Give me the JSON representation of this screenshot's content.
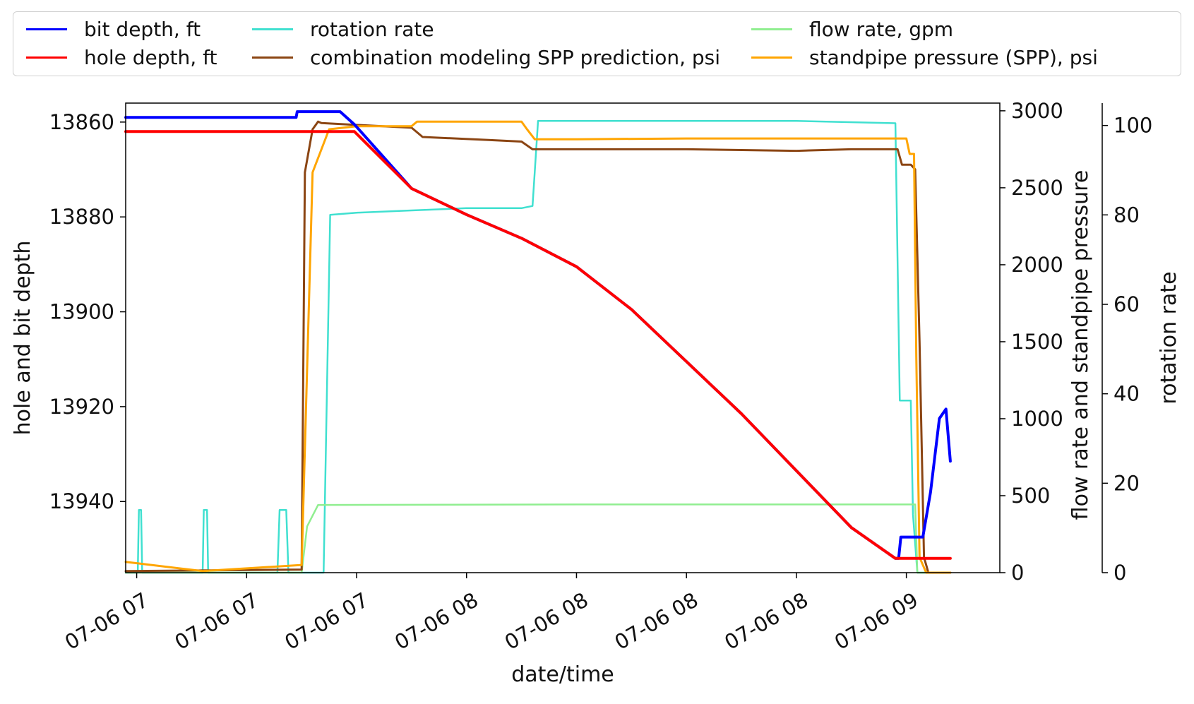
{
  "chart_data": {
    "type": "line",
    "legend": {
      "placement": "top",
      "entries": [
        {
          "label": "bit depth, ft",
          "color": "#0000ff"
        },
        {
          "label": "hole depth, ft",
          "color": "#ff0000"
        },
        {
          "label": "rotation rate",
          "color": "#40e0d0"
        },
        {
          "label": "combination modeling SPP prediction, psi",
          "color": "#8b4513"
        },
        {
          "label": "flow rate, gpm",
          "color": "#90ee90"
        },
        {
          "label": "standpipe pressure (SPP), psi",
          "color": "#ffa500"
        }
      ]
    },
    "xlabel": "date/time",
    "xlim": [
      -0.1,
      7.85
    ],
    "x_ticks": [
      {
        "value": 0,
        "label": "07-06 07"
      },
      {
        "value": 1,
        "label": "07-06 07"
      },
      {
        "value": 2,
        "label": "07-06 07"
      },
      {
        "value": 3,
        "label": "07-06 08"
      },
      {
        "value": 4,
        "label": "07-06 08"
      },
      {
        "value": 5,
        "label": "07-06 08"
      },
      {
        "value": 6,
        "label": "07-06 08"
      },
      {
        "value": 7,
        "label": "07-06 09"
      }
    ],
    "y_left": {
      "label": "hole and bit depth",
      "ylim": [
        13856,
        13955
      ],
      "inverted": true,
      "ticks": [
        13860,
        13880,
        13900,
        13920,
        13940
      ]
    },
    "y_right1": {
      "label": "flow rate and standpipe pressure",
      "ylim": [
        0,
        3050
      ],
      "ticks": [
        0,
        500,
        1000,
        1500,
        2000,
        2500,
        3000
      ]
    },
    "y_right2": {
      "label": "rotation rate",
      "ylim": [
        0,
        105
      ],
      "ticks": [
        0,
        20,
        40,
        60,
        80,
        100
      ]
    },
    "series": [
      {
        "name": "bit depth, ft",
        "axis": "left",
        "color": "#0000ff",
        "width": 4,
        "x": [
          -0.1,
          1.45,
          1.46,
          1.85,
          1.98,
          2.5,
          3.0,
          3.5,
          4.0,
          4.5,
          5.0,
          5.5,
          6.0,
          6.5,
          6.9,
          6.93,
          6.95,
          7.15,
          7.22,
          7.3,
          7.36,
          7.4
        ],
        "y": [
          13859,
          13859,
          13857.8,
          13857.8,
          13860.5,
          13874,
          13879.5,
          13884.5,
          13890.5,
          13899.5,
          13910.5,
          13921.5,
          13933.5,
          13945.5,
          13952,
          13952,
          13947.5,
          13947.5,
          13938,
          13922.5,
          13920.5,
          13931.5
        ]
      },
      {
        "name": "hole depth, ft",
        "axis": "left",
        "color": "#ff0000",
        "width": 4,
        "x": [
          -0.1,
          1.98,
          2.5,
          3.0,
          3.5,
          4.0,
          4.5,
          5.0,
          5.5,
          6.0,
          6.5,
          6.9,
          7.4
        ],
        "y": [
          13862,
          13862,
          13874,
          13879.5,
          13884.5,
          13890.5,
          13899.5,
          13910.5,
          13921.5,
          13933.5,
          13945.5,
          13952,
          13952
        ]
      },
      {
        "name": "rotation rate",
        "axis": "right2",
        "color": "#40e0d0",
        "width": 2.5,
        "x": [
          -0.1,
          0.01,
          0.02,
          0.04,
          0.05,
          0.6,
          0.61,
          0.64,
          0.65,
          1.28,
          1.3,
          1.36,
          1.38,
          1.7,
          1.76,
          2.0,
          2.5,
          3.0,
          3.5,
          3.6,
          3.65,
          4.0,
          5.0,
          6.0,
          6.9,
          6.94,
          7.04,
          7.06,
          7.1,
          7.2,
          7.4
        ],
        "y": [
          0,
          0,
          14,
          14,
          0,
          0,
          14,
          14,
          0,
          0,
          14,
          14,
          0,
          0,
          80,
          80.5,
          81,
          81.5,
          81.5,
          82,
          101,
          101,
          101,
          101,
          100.5,
          38.5,
          38.5,
          13,
          0,
          0,
          0
        ]
      },
      {
        "name": "combination modeling SPP prediction, psi",
        "axis": "right1",
        "color": "#8b4513",
        "width": 3,
        "x": [
          -0.1,
          1.5,
          1.53,
          1.6,
          1.65,
          1.68,
          2.5,
          2.55,
          2.6,
          3.2,
          3.5,
          3.6,
          3.65,
          4.0,
          5.0,
          6.0,
          6.5,
          6.92,
          6.96,
          7.04,
          7.08,
          7.12,
          7.16,
          7.2,
          7.4
        ],
        "y": [
          10,
          20,
          2600,
          2880,
          2930,
          2920,
          2890,
          2860,
          2830,
          2810,
          2800,
          2750,
          2750,
          2750,
          2750,
          2740,
          2750,
          2750,
          2650,
          2650,
          2620,
          1500,
          100,
          0,
          0
        ]
      },
      {
        "name": "flow rate, gpm",
        "axis": "right1",
        "color": "#90ee90",
        "width": 2.5,
        "x": [
          -0.1,
          1.5,
          1.55,
          1.65,
          4.0,
          7.08,
          7.1,
          7.2,
          7.4
        ],
        "y": [
          0,
          0,
          300,
          440,
          443,
          443,
          0,
          0,
          0
        ]
      },
      {
        "name": "standpipe pressure (SPP), psi",
        "axis": "right1",
        "color": "#ffa500",
        "width": 3,
        "x": [
          -0.1,
          0.6,
          1.5,
          1.6,
          1.75,
          2.0,
          2.5,
          2.55,
          3.5,
          3.55,
          3.62,
          4.0,
          5.0,
          6.0,
          7.0,
          7.03,
          7.07,
          7.09,
          7.12,
          7.18,
          7.4
        ],
        "y": [
          70,
          10,
          50,
          2600,
          2880,
          2900,
          2900,
          2930,
          2930,
          2880,
          2815,
          2815,
          2820,
          2820,
          2820,
          2720,
          2720,
          1400,
          100,
          0,
          0
        ]
      }
    ]
  }
}
